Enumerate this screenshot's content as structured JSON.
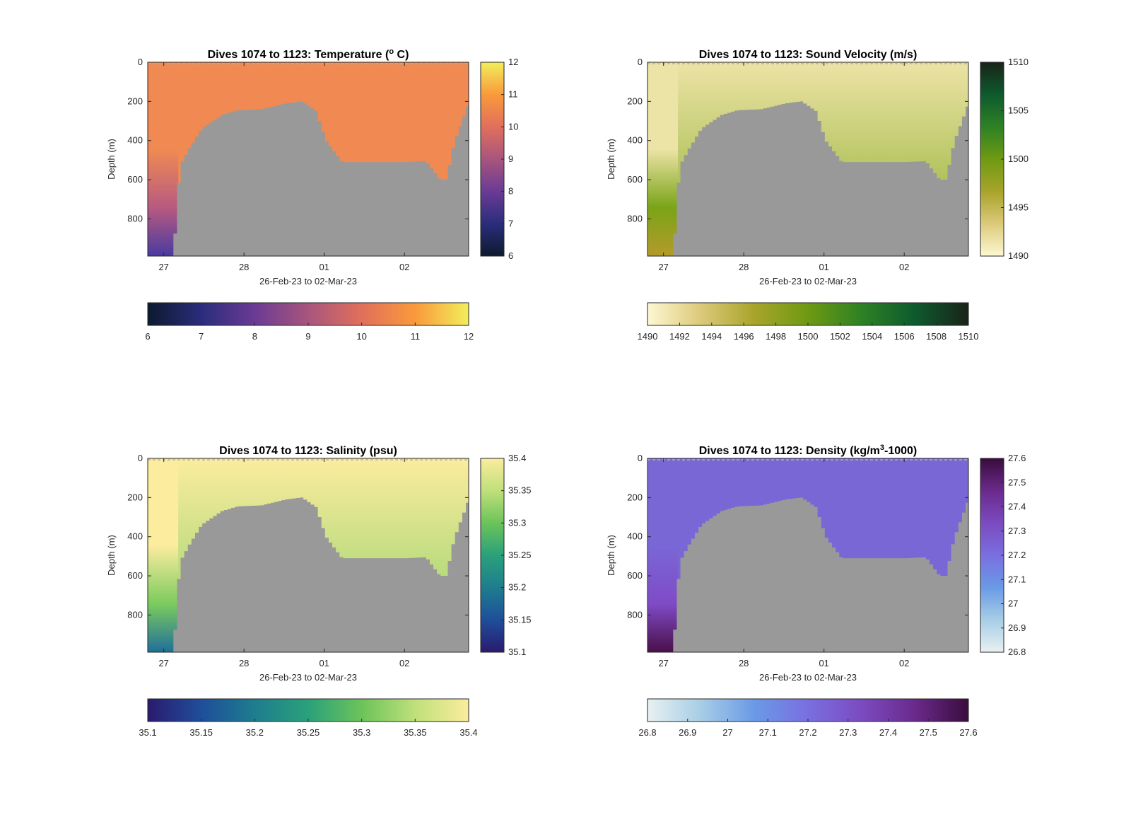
{
  "figure": {
    "panels": [
      {
        "id": "temperature",
        "title": "Dives 1074 to 1123: Temperature (",
        "title_sup": "o",
        "title_end": " C)",
        "ylabel": "Depth (m)",
        "xlabel": "26-Feb-23 to 02-Mar-23",
        "y_ticks": [
          "0",
          "200",
          "400",
          "600",
          "800"
        ],
        "x_ticks": [
          "27",
          "28",
          "01",
          "02"
        ],
        "right_cbar_ticks": [
          "12",
          "11",
          "10",
          "9",
          "8",
          "7",
          "6"
        ],
        "bottom_cbar_ticks": [
          "6",
          "7",
          "8",
          "9",
          "10",
          "11",
          "12"
        ],
        "colormap": [
          "#0c1a2e",
          "#2a2d7c",
          "#6a3b94",
          "#a8557d",
          "#e16f5b",
          "#f99a3c",
          "#f2ee5b"
        ],
        "surface_color": "#f08a52",
        "deep_color": "#4a3aa0",
        "mid_color": "#b75a80"
      },
      {
        "id": "sound_velocity",
        "title": "Dives 1074 to 1123: Sound Velocity (m/s)",
        "title_sup": "",
        "title_end": "",
        "ylabel": "Depth (m)",
        "xlabel": "26-Feb-23 to 02-Mar-23",
        "y_ticks": [
          "0",
          "200",
          "400",
          "600",
          "800"
        ],
        "x_ticks": [
          "27",
          "28",
          "01",
          "02"
        ],
        "right_cbar_ticks": [
          "1510",
          "1505",
          "1500",
          "1495",
          "1490"
        ],
        "bottom_cbar_ticks": [
          "1490",
          "1492",
          "1494",
          "1496",
          "1498",
          "1500",
          "1502",
          "1504",
          "1506",
          "1508",
          "1510"
        ],
        "colormap": [
          "#fdf8d2",
          "#dcc97a",
          "#a8a42a",
          "#6e9a12",
          "#2e8124",
          "#0d5a2e",
          "#1a2318"
        ],
        "surface_color": "#ece3a6",
        "deep_color": "#b49a2a",
        "mid_color": "#7aa417"
      },
      {
        "id": "salinity",
        "title": "Dives 1074 to 1123: Salinity (psu)",
        "title_sup": "",
        "title_end": "",
        "ylabel": "Depth (m)",
        "xlabel": "26-Feb-23 to 02-Mar-23",
        "y_ticks": [
          "0",
          "200",
          "400",
          "600",
          "800"
        ],
        "x_ticks": [
          "27",
          "28",
          "01",
          "02"
        ],
        "right_cbar_ticks": [
          "35.4",
          "35.35",
          "35.3",
          "35.25",
          "35.2",
          "35.15",
          "35.1"
        ],
        "bottom_cbar_ticks": [
          "35.1",
          "35.15",
          "35.2",
          "35.25",
          "35.3",
          "35.35",
          "35.4"
        ],
        "colormap": [
          "#2a1a6e",
          "#1f4e9a",
          "#1e7d8e",
          "#2aa17a",
          "#6cc35a",
          "#bfe07a",
          "#fbec9e"
        ],
        "surface_color": "#fbec9e",
        "deep_color": "#1f6f9a",
        "mid_color": "#7ccb5e"
      },
      {
        "id": "density",
        "title": "Dives 1074 to 1123: Density (kg/m",
        "title_sup": "3",
        "title_end": "-1000)",
        "ylabel": "Depth (m)",
        "xlabel": "26-Feb-23 to 02-Mar-23",
        "y_ticks": [
          "0",
          "200",
          "400",
          "600",
          "800"
        ],
        "x_ticks": [
          "27",
          "28",
          "01",
          "02"
        ],
        "right_cbar_ticks": [
          "27.6",
          "27.5",
          "27.4",
          "27.3",
          "27.2",
          "27.1",
          "27",
          "26.9",
          "26.8"
        ],
        "bottom_cbar_ticks": [
          "26.8",
          "26.9",
          "27",
          "27.1",
          "27.2",
          "27.3",
          "27.4",
          "27.5",
          "27.6"
        ],
        "colormap": [
          "#e8f1f1",
          "#a7cde6",
          "#6a9ae6",
          "#7a6fe0",
          "#7b4bc0",
          "#6a2a8c",
          "#3a0c3c"
        ],
        "surface_color": "#7a67d6",
        "deep_color": "#4a0f4a",
        "mid_color": "#7f4bc6"
      }
    ]
  },
  "chart_data": [
    {
      "type": "heatmap",
      "title": "Dives 1074 to 1123: Temperature (° C)",
      "xlabel": "26-Feb-23 to 02-Mar-23",
      "ylabel": "Depth (m)",
      "x_ticks": [
        "27",
        "28",
        "01",
        "02"
      ],
      "ylim": [
        0,
        990
      ],
      "y_reversed": true,
      "clim": [
        6,
        12
      ],
      "colorbar": "right and bottom",
      "summary": {
        "upper_water_temperature": 10.2,
        "deepest_temperature_near_27": 7.3
      },
      "seafloor_depth_profile_m": {
        "time_days_from_26Feb": [
          0.8,
          1.1,
          1.18,
          1.3,
          1.45,
          1.7,
          1.9,
          2.2,
          2.5,
          2.7,
          2.88,
          3.0,
          3.2,
          3.6,
          4.0,
          4.25,
          4.42,
          4.5,
          4.6,
          4.78
        ],
        "depth_m": [
          990,
          990,
          530,
          440,
          340,
          270,
          245,
          240,
          210,
          200,
          250,
          400,
          510,
          510,
          510,
          505,
          600,
          600,
          410,
          210
        ]
      }
    },
    {
      "type": "heatmap",
      "title": "Dives 1074 to 1123: Sound Velocity (m/s)",
      "xlabel": "26-Feb-23 to 02-Mar-23",
      "ylabel": "Depth (m)",
      "x_ticks": [
        "27",
        "28",
        "01",
        "02"
      ],
      "ylim": [
        0,
        990
      ],
      "y_reversed": true,
      "clim": [
        1490,
        1510
      ],
      "colorbar": "right and bottom",
      "summary": {
        "near_surface": 1492.5,
        "at_500m": 1499.5,
        "near_bottom_at_27": 1496
      }
    },
    {
      "type": "heatmap",
      "title": "Dives 1074 to 1123: Salinity (psu)",
      "xlabel": "26-Feb-23 to 02-Mar-23",
      "ylabel": "Depth (m)",
      "x_ticks": [
        "27",
        "28",
        "01",
        "02"
      ],
      "ylim": [
        0,
        990
      ],
      "y_reversed": true,
      "clim": [
        35.1,
        35.4
      ],
      "colorbar": "right and bottom",
      "summary": {
        "upper_water": 35.39,
        "near_500m_on_shelf": 35.36,
        "deepest_near_27": 35.18
      }
    },
    {
      "type": "heatmap",
      "title": "Dives 1074 to 1123: Density (kg/m³-1000)",
      "xlabel": "26-Feb-23 to 02-Mar-23",
      "ylabel": "Depth (m)",
      "x_ticks": [
        "27",
        "28",
        "01",
        "02"
      ],
      "ylim": [
        0,
        990
      ],
      "y_reversed": true,
      "clim": [
        26.8,
        27.6
      ],
      "colorbar": "right and bottom",
      "summary": {
        "upper_water": 27.22,
        "at_500m": 27.27,
        "deepest_near_27": 27.55
      }
    }
  ]
}
